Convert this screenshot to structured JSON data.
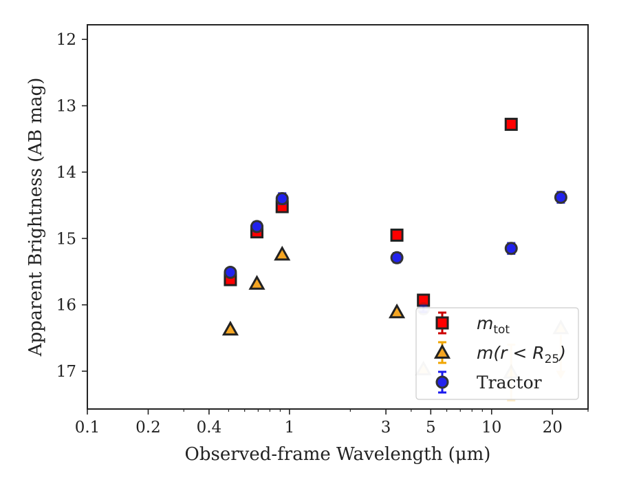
{
  "chart_data": {
    "type": "scatter",
    "xlabel": "Observed-frame Wavelength (μm)",
    "ylabel": "Apparent Brightness (AB mag)",
    "x_scale": "log",
    "xlim": [
      0.1,
      30
    ],
    "ylim": [
      17.57,
      11.78
    ],
    "y_inverted": true,
    "grid": false,
    "legend_position": "lower-right",
    "x_ticks": [
      {
        "value": 0.1,
        "label": "0.1"
      },
      {
        "value": 0.2,
        "label": "0.2"
      },
      {
        "value": 0.4,
        "label": "0.4"
      },
      {
        "value": 1,
        "label": "1"
      },
      {
        "value": 3,
        "label": "3"
      },
      {
        "value": 5,
        "label": "5"
      },
      {
        "value": 10,
        "label": "10"
      },
      {
        "value": 20,
        "label": "20"
      }
    ],
    "y_ticks": [
      {
        "value": 12,
        "label": "12"
      },
      {
        "value": 13,
        "label": "13"
      },
      {
        "value": 14,
        "label": "14"
      },
      {
        "value": 15,
        "label": "15"
      },
      {
        "value": 16,
        "label": "16"
      },
      {
        "value": 17,
        "label": "17"
      }
    ],
    "series": [
      {
        "name": "m_tot",
        "legend_label_base": "m",
        "legend_label_sub": "tot",
        "marker": "square",
        "fill": "#ff0000",
        "edge": "#222222",
        "errcolor": "#cc0000",
        "points": [
          {
            "x": 0.51,
            "y": 15.62,
            "err": 0.07
          },
          {
            "x": 0.69,
            "y": 14.9,
            "err": 0.07
          },
          {
            "x": 0.92,
            "y": 14.52,
            "err": 0.08
          },
          {
            "x": 3.4,
            "y": 14.95,
            "err": 0.06
          },
          {
            "x": 4.6,
            "y": 15.93,
            "err": 0.06
          },
          {
            "x": 12.5,
            "y": 13.28,
            "err": 0.08
          }
        ]
      },
      {
        "name": "m(r < R25)",
        "legend_label_base": "m(r < R",
        "legend_label_sub": "25",
        "legend_label_end": ")",
        "marker": "triangle",
        "fill": "#f5a623",
        "edge": "#222222",
        "errcolor": "#f0a500",
        "points": [
          {
            "x": 0.51,
            "y": 16.37
          },
          {
            "x": 0.69,
            "y": 15.68
          },
          {
            "x": 0.92,
            "y": 15.24
          },
          {
            "x": 3.4,
            "y": 16.11
          },
          {
            "x": 4.6,
            "y": 16.97,
            "faded": true
          },
          {
            "x": 12.5,
            "y": 17.02,
            "faded": true,
            "err": 0.42
          },
          {
            "x": 22,
            "y": 16.35,
            "faded": true,
            "upper_limit": true
          }
        ]
      },
      {
        "name": "Tractor",
        "marker": "circle",
        "fill": "#2222ee",
        "edge": "#333333",
        "errcolor": "#1a1aee",
        "points": [
          {
            "x": 0.51,
            "y": 15.51,
            "err": 0.06
          },
          {
            "x": 0.69,
            "y": 14.82,
            "err": 0.07
          },
          {
            "x": 0.92,
            "y": 14.4,
            "err": 0.08
          },
          {
            "x": 3.4,
            "y": 15.29,
            "err": 0.07
          },
          {
            "x": 4.6,
            "y": 16.06,
            "err": 0.05,
            "faded": true
          },
          {
            "x": 12.5,
            "y": 15.15,
            "err": 0.08
          },
          {
            "x": 22,
            "y": 14.38,
            "err": 0.08
          }
        ]
      }
    ]
  }
}
